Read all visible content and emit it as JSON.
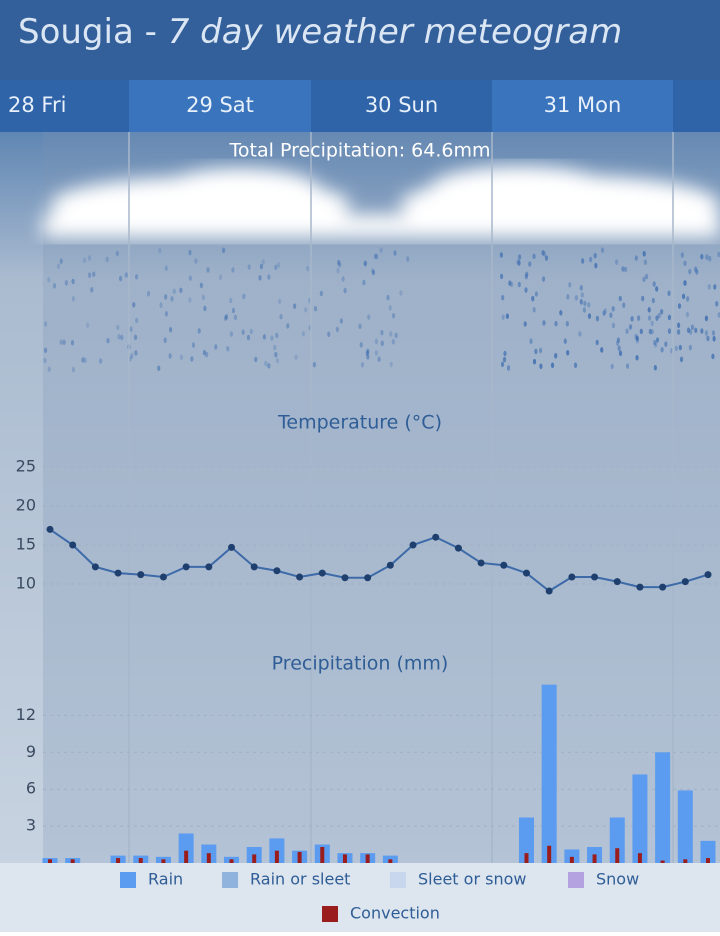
{
  "header": {
    "title": "Sougia - ",
    "title_italic": "7 day weather meteogram"
  },
  "days": [
    "28 Fri",
    "29 Sat",
    "30 Sun",
    "31 Mon"
  ],
  "total_precipitation": "Total Precipitation: 64.6mm",
  "chart_data": [
    {
      "type": "line",
      "title": "Temperature (°C)",
      "color": "#3d6aa8",
      "values": [
        17.0,
        15.0,
        12.2,
        11.4,
        11.2,
        10.9,
        12.2,
        12.2,
        14.7,
        12.2,
        11.7,
        10.9,
        11.4,
        10.8,
        10.8,
        12.4,
        15.0,
        16.0,
        14.6,
        12.7,
        12.4,
        11.4,
        9.1,
        10.9,
        10.9,
        10.3,
        9.6,
        9.6,
        10.3,
        11.2
      ],
      "ylim": [
        0,
        30
      ],
      "yticks": [
        10,
        15,
        20,
        25
      ],
      "grid": true
    },
    {
      "type": "bar",
      "title": "Precipitation (mm)",
      "series": [
        {
          "name": "Rain",
          "color": "#5b9bf0",
          "values": [
            0.4,
            0.4,
            0,
            0.6,
            0.6,
            0.5,
            2.4,
            1.5,
            0.5,
            1.3,
            2.0,
            1.0,
            1.5,
            0.8,
            0.8,
            0.6,
            0,
            0,
            0,
            0,
            0,
            3.7,
            14.5,
            1.1,
            1.3,
            3.7,
            7.2,
            9.0,
            5.9,
            1.8
          ]
        },
        {
          "name": "Rain or sleet",
          "color": "#8fb3dd",
          "values": [
            0,
            0,
            0,
            0,
            0,
            0,
            0,
            0,
            0,
            0,
            0,
            0,
            0,
            0,
            0,
            0,
            0,
            0,
            0,
            0,
            0,
            0,
            0,
            0,
            0,
            0,
            0,
            0,
            0,
            0
          ]
        },
        {
          "name": "Sleet or snow",
          "color": "#c8d6ee",
          "values": [
            0,
            0,
            0,
            0,
            0,
            0,
            0,
            0,
            0,
            0,
            0,
            0,
            0,
            0,
            0,
            0,
            0,
            0,
            0,
            0,
            0,
            0,
            0,
            0,
            0,
            0,
            0,
            0,
            0,
            0
          ]
        },
        {
          "name": "Snow",
          "color": "#b3a1e0",
          "values": [
            0,
            0,
            0,
            0,
            0,
            0,
            0,
            0,
            0,
            0,
            0,
            0,
            0,
            0,
            0,
            0,
            0,
            0,
            0,
            0,
            0,
            0,
            0,
            0,
            0,
            0,
            0,
            0,
            0,
            0
          ]
        },
        {
          "name": "Convection",
          "color": "#9b1c1c",
          "values": [
            0.3,
            0.3,
            0,
            0.4,
            0.4,
            0.3,
            1.0,
            0.8,
            0.3,
            0.7,
            1.0,
            0.9,
            1.3,
            0.7,
            0.7,
            0.3,
            0,
            0,
            0,
            0,
            0,
            0.8,
            1.4,
            0.5,
            0.7,
            1.2,
            0.8,
            0.2,
            0.3,
            0.4
          ]
        }
      ],
      "ylim": [
        0,
        15
      ],
      "yticks": [
        3,
        6,
        9,
        12
      ],
      "grid": true
    }
  ]
}
